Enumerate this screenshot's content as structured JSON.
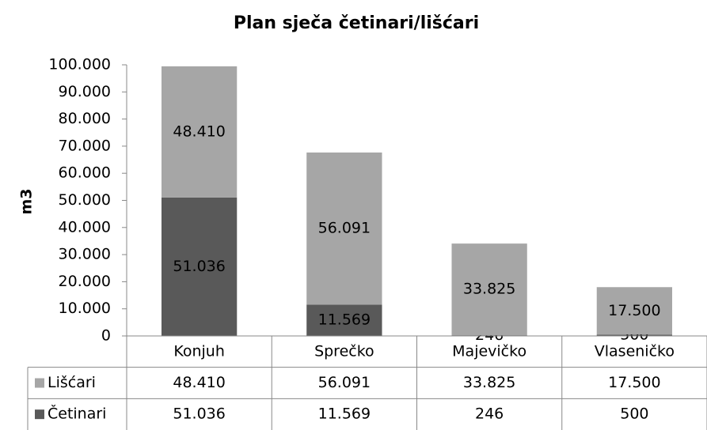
{
  "chart_data": {
    "type": "bar",
    "stacked": true,
    "title": "Plan sječa četinari/lišćari",
    "y_label": "m3",
    "categories": [
      "Konjuh",
      "Sprečko",
      "Majevičko",
      "Vlaseničko"
    ],
    "series": [
      {
        "name": "Četinari",
        "color": "#595959",
        "values": [
          51036,
          11569,
          246,
          500
        ],
        "value_labels": [
          "51.036",
          "11.569",
          "246",
          "500"
        ]
      },
      {
        "name": "Lišćari",
        "color": "#a6a6a6",
        "values": [
          48410,
          56091,
          33825,
          17500
        ],
        "value_labels": [
          "48.410",
          "56.091",
          "33.825",
          "17.500"
        ]
      }
    ],
    "ylim": [
      0,
      100000
    ],
    "yticks": [
      0,
      {
        "value": 10000,
        "label": "10.000"
      },
      {
        "value": 20000,
        "label": "20.000"
      },
      {
        "value": 30000,
        "label": "30.000"
      },
      {
        "value": 40000,
        "label": "40.000"
      },
      {
        "value": 50000,
        "label": "50.000"
      },
      {
        "value": 60000,
        "label": "60.000"
      },
      {
        "value": 70000,
        "label": "70.000"
      },
      {
        "value": 80000,
        "label": "80.000"
      },
      {
        "value": 90000,
        "label": "90.000"
      },
      {
        "value": 100000,
        "label": "100.000"
      }
    ],
    "grid": false,
    "data_table": true
  }
}
